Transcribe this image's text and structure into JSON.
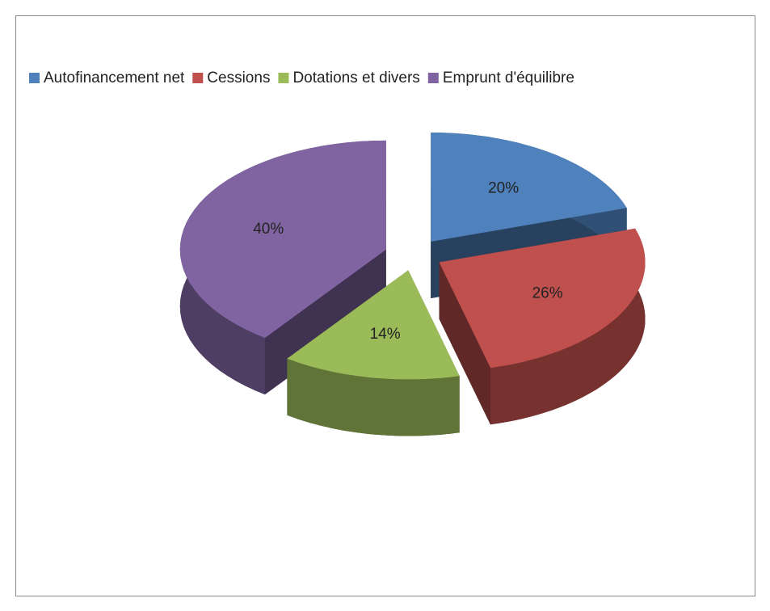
{
  "chart_data": {
    "type": "pie3d",
    "categories": [
      "Autofinancement net",
      "Cessions",
      "Dotations et divers",
      "Emprunt d'équilibre"
    ],
    "values": [
      20,
      26,
      14,
      40
    ],
    "value_labels": [
      "20%",
      "26%",
      "14%",
      "40%"
    ],
    "colors": [
      "#4f81bd",
      "#c0504d",
      "#9bbb59",
      "#8064a2"
    ],
    "legend": "top"
  }
}
